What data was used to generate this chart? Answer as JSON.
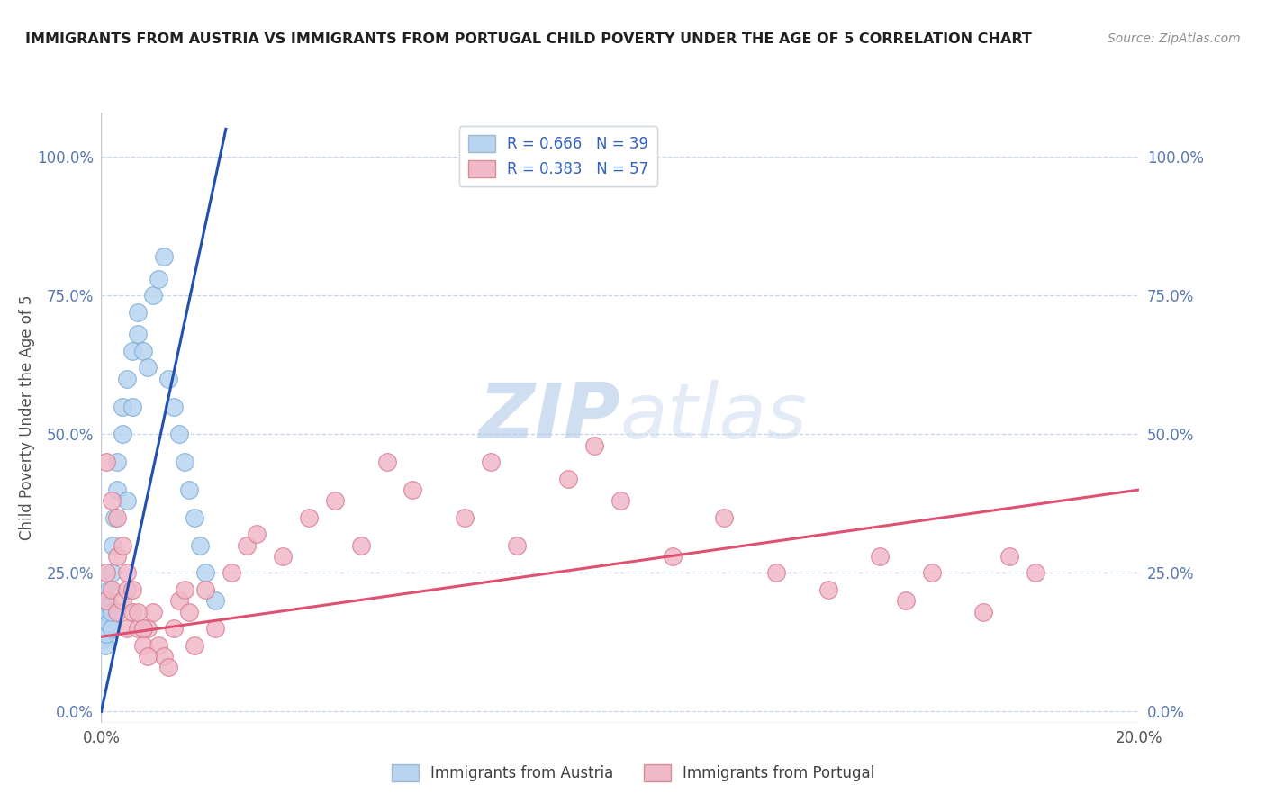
{
  "title": "IMMIGRANTS FROM AUSTRIA VS IMMIGRANTS FROM PORTUGAL CHILD POVERTY UNDER THE AGE OF 5 CORRELATION CHART",
  "source": "Source: ZipAtlas.com",
  "ylabel": "Child Poverty Under the Age of 5",
  "ytick_vals": [
    0.0,
    0.25,
    0.5,
    0.75,
    1.0
  ],
  "ytick_labels": [
    "0.0%",
    "25.0%",
    "50.0%",
    "75.0%",
    "100.0%"
  ],
  "xlim": [
    0.0,
    0.2
  ],
  "ylim": [
    -0.02,
    1.08
  ],
  "austria_color": "#b8d4f0",
  "austria_edge": "#7aacd4",
  "portugal_color": "#f0b8c8",
  "portugal_edge": "#d47a90",
  "austria_line_color": "#2050b0",
  "portugal_line_color": "#e05070",
  "austria_R": 0.666,
  "austria_N": 39,
  "portugal_R": 0.383,
  "portugal_N": 57,
  "legend_label_austria": "R = 0.666   N = 39",
  "legend_label_portugal": "R = 0.383   N = 57",
  "legend_label_austria_bottom": "Immigrants from Austria",
  "legend_label_portugal_bottom": "Immigrants from Portugal",
  "watermark_zip": "ZIP",
  "watermark_atlas": "atlas",
  "background_color": "#ffffff",
  "grid_color": "#c8d4e8",
  "austria_line_x0": 0.0,
  "austria_line_y0": 0.0,
  "austria_line_x1": 0.024,
  "austria_line_y1": 1.05,
  "portugal_line_x0": 0.0,
  "portugal_line_y0": 0.135,
  "portugal_line_x1": 0.2,
  "portugal_line_y1": 0.4,
  "austria_scatter_x": [
    0.0005,
    0.0005,
    0.0008,
    0.001,
    0.001,
    0.001,
    0.0012,
    0.0013,
    0.0015,
    0.0017,
    0.002,
    0.002,
    0.002,
    0.0022,
    0.0025,
    0.003,
    0.003,
    0.004,
    0.004,
    0.005,
    0.005,
    0.006,
    0.006,
    0.007,
    0.007,
    0.008,
    0.009,
    0.01,
    0.011,
    0.012,
    0.013,
    0.014,
    0.015,
    0.016,
    0.017,
    0.018,
    0.019,
    0.02,
    0.022
  ],
  "austria_scatter_y": [
    0.15,
    0.13,
    0.12,
    0.2,
    0.17,
    0.14,
    0.18,
    0.16,
    0.22,
    0.19,
    0.15,
    0.18,
    0.25,
    0.3,
    0.35,
    0.4,
    0.45,
    0.5,
    0.55,
    0.38,
    0.6,
    0.55,
    0.65,
    0.68,
    0.72,
    0.65,
    0.62,
    0.75,
    0.78,
    0.82,
    0.6,
    0.55,
    0.5,
    0.45,
    0.4,
    0.35,
    0.3,
    0.25,
    0.2
  ],
  "portugal_scatter_x": [
    0.001,
    0.001,
    0.002,
    0.003,
    0.003,
    0.004,
    0.005,
    0.005,
    0.006,
    0.007,
    0.008,
    0.009,
    0.01,
    0.011,
    0.012,
    0.013,
    0.014,
    0.015,
    0.016,
    0.017,
    0.018,
    0.02,
    0.022,
    0.025,
    0.028,
    0.03,
    0.035,
    0.04,
    0.045,
    0.05,
    0.055,
    0.06,
    0.07,
    0.075,
    0.08,
    0.09,
    0.095,
    0.1,
    0.11,
    0.12,
    0.13,
    0.14,
    0.15,
    0.155,
    0.16,
    0.17,
    0.175,
    0.18,
    0.001,
    0.002,
    0.003,
    0.004,
    0.005,
    0.006,
    0.007,
    0.008,
    0.009
  ],
  "portugal_scatter_y": [
    0.25,
    0.2,
    0.22,
    0.18,
    0.28,
    0.2,
    0.22,
    0.15,
    0.18,
    0.15,
    0.12,
    0.15,
    0.18,
    0.12,
    0.1,
    0.08,
    0.15,
    0.2,
    0.22,
    0.18,
    0.12,
    0.22,
    0.15,
    0.25,
    0.3,
    0.32,
    0.28,
    0.35,
    0.38,
    0.3,
    0.45,
    0.4,
    0.35,
    0.45,
    0.3,
    0.42,
    0.48,
    0.38,
    0.28,
    0.35,
    0.25,
    0.22,
    0.28,
    0.2,
    0.25,
    0.18,
    0.28,
    0.25,
    0.45,
    0.38,
    0.35,
    0.3,
    0.25,
    0.22,
    0.18,
    0.15,
    0.1
  ]
}
